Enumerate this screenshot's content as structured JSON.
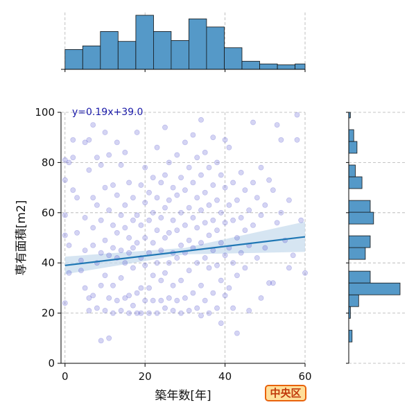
{
  "chart_data": {
    "type": "scatter",
    "title": "",
    "xlabel": "築年数[年]",
    "ylabel": "専有面積[m2]",
    "xlim": [
      -1,
      60
    ],
    "ylim": [
      0,
      100
    ],
    "xticks": [
      0,
      20,
      40,
      60
    ],
    "yticks": [
      0,
      20,
      40,
      60,
      80,
      100
    ],
    "grid": true,
    "fit_label": "y=0.19x+39.0",
    "fit": {
      "slope": 0.19,
      "intercept": 39.0
    },
    "colors": {
      "points": "#3a3ac8",
      "line": "#1f77b4",
      "hist": "#5599c8",
      "band": "#c8dcee"
    },
    "points": [
      [
        0,
        24
      ],
      [
        0,
        51
      ],
      [
        0,
        59
      ],
      [
        0,
        73
      ],
      [
        0,
        81
      ],
      [
        1,
        80
      ],
      [
        1,
        47
      ],
      [
        1,
        36
      ],
      [
        2,
        89
      ],
      [
        2,
        82
      ],
      [
        2,
        69
      ],
      [
        3,
        66
      ],
      [
        3,
        52
      ],
      [
        4,
        41
      ],
      [
        4,
        37
      ],
      [
        5,
        88
      ],
      [
        5,
        58
      ],
      [
        5,
        45
      ],
      [
        5,
        30
      ],
      [
        6,
        89
      ],
      [
        6,
        77
      ],
      [
        6,
        26
      ],
      [
        6,
        21
      ],
      [
        7,
        95
      ],
      [
        7,
        66
      ],
      [
        7,
        54
      ],
      [
        7,
        47
      ],
      [
        7,
        27
      ],
      [
        8,
        82
      ],
      [
        8,
        63
      ],
      [
        8,
        40
      ],
      [
        8,
        22
      ],
      [
        9,
        79
      ],
      [
        9,
        57
      ],
      [
        9,
        44
      ],
      [
        9,
        31
      ],
      [
        9,
        9
      ],
      [
        10,
        92
      ],
      [
        10,
        70
      ],
      [
        10,
        49
      ],
      [
        10,
        35
      ],
      [
        10,
        21
      ],
      [
        11,
        83
      ],
      [
        11,
        61
      ],
      [
        11,
        43
      ],
      [
        11,
        26
      ],
      [
        11,
        10
      ],
      [
        12,
        71
      ],
      [
        12,
        55
      ],
      [
        12,
        46
      ],
      [
        12,
        31
      ],
      [
        12,
        20
      ],
      [
        13,
        88
      ],
      [
        13,
        67
      ],
      [
        13,
        52
      ],
      [
        13,
        42
      ],
      [
        13,
        25
      ],
      [
        14,
        79
      ],
      [
        14,
        59
      ],
      [
        14,
        45
      ],
      [
        14,
        34
      ],
      [
        14,
        21
      ],
      [
        15,
        84
      ],
      [
        15,
        63
      ],
      [
        15,
        54
      ],
      [
        15,
        40
      ],
      [
        15,
        26
      ],
      [
        16,
        72
      ],
      [
        16,
        50
      ],
      [
        16,
        44
      ],
      [
        16,
        27
      ],
      [
        16,
        20
      ],
      [
        17,
        66
      ],
      [
        17,
        57
      ],
      [
        17,
        46
      ],
      [
        17,
        38
      ],
      [
        17,
        23
      ],
      [
        18,
        92
      ],
      [
        18,
        59
      ],
      [
        18,
        48
      ],
      [
        18,
        28
      ],
      [
        18,
        20
      ],
      [
        19,
        71
      ],
      [
        19,
        55
      ],
      [
        19,
        42
      ],
      [
        19,
        30
      ],
      [
        19,
        20
      ],
      [
        20,
        78
      ],
      [
        20,
        64
      ],
      [
        20,
        50
      ],
      [
        20,
        39
      ],
      [
        20,
        25
      ],
      [
        21,
        68
      ],
      [
        21,
        57
      ],
      [
        21,
        44
      ],
      [
        21,
        30
      ],
      [
        21,
        20
      ],
      [
        22,
        74
      ],
      [
        22,
        60
      ],
      [
        22,
        48
      ],
      [
        22,
        35
      ],
      [
        22,
        25
      ],
      [
        23,
        86
      ],
      [
        23,
        66
      ],
      [
        23,
        53
      ],
      [
        23,
        40
      ],
      [
        23,
        20
      ],
      [
        24,
        72
      ],
      [
        24,
        58
      ],
      [
        24,
        45
      ],
      [
        24,
        33
      ],
      [
        24,
        25
      ],
      [
        25,
        94
      ],
      [
        25,
        75
      ],
      [
        25,
        62
      ],
      [
        25,
        50
      ],
      [
        25,
        36
      ],
      [
        25,
        22
      ],
      [
        26,
        80
      ],
      [
        26,
        65
      ],
      [
        26,
        52
      ],
      [
        26,
        40
      ],
      [
        26,
        26
      ],
      [
        27,
        70
      ],
      [
        27,
        57
      ],
      [
        27,
        44
      ],
      [
        27,
        31
      ],
      [
        27,
        21
      ],
      [
        28,
        83
      ],
      [
        28,
        67
      ],
      [
        28,
        53
      ],
      [
        28,
        42
      ],
      [
        28,
        25
      ],
      [
        29,
        74
      ],
      [
        29,
        60
      ],
      [
        29,
        47
      ],
      [
        29,
        33
      ],
      [
        29,
        20
      ],
      [
        30,
        88
      ],
      [
        30,
        69
      ],
      [
        30,
        55
      ],
      [
        30,
        44
      ],
      [
        30,
        26
      ],
      [
        31,
        78
      ],
      [
        31,
        62
      ],
      [
        31,
        49
      ],
      [
        31,
        37
      ],
      [
        31,
        21
      ],
      [
        32,
        91
      ],
      [
        32,
        72
      ],
      [
        32,
        58
      ],
      [
        32,
        46
      ],
      [
        32,
        28
      ],
      [
        33,
        82
      ],
      [
        33,
        66
      ],
      [
        33,
        54
      ],
      [
        33,
        40
      ],
      [
        33,
        22
      ],
      [
        34,
        97
      ],
      [
        34,
        75
      ],
      [
        34,
        61
      ],
      [
        34,
        48
      ],
      [
        34,
        31
      ],
      [
        34,
        19
      ],
      [
        35,
        84
      ],
      [
        35,
        68
      ],
      [
        35,
        56
      ],
      [
        35,
        42
      ],
      [
        35,
        25
      ],
      [
        36,
        78
      ],
      [
        36,
        63
      ],
      [
        36,
        51
      ],
      [
        36,
        38
      ],
      [
        36,
        20
      ],
      [
        37,
        90
      ],
      [
        37,
        71
      ],
      [
        37,
        57
      ],
      [
        37,
        45
      ],
      [
        37,
        28
      ],
      [
        38,
        80
      ],
      [
        38,
        65
      ],
      [
        38,
        53
      ],
      [
        38,
        39
      ],
      [
        38,
        22
      ],
      [
        39,
        75
      ],
      [
        39,
        60
      ],
      [
        39,
        48
      ],
      [
        39,
        33
      ],
      [
        39,
        16
      ],
      [
        40,
        89
      ],
      [
        40,
        70
      ],
      [
        40,
        56
      ],
      [
        40,
        43
      ],
      [
        40,
        27
      ],
      [
        41,
        86
      ],
      [
        41,
        63
      ],
      [
        41,
        46
      ],
      [
        41,
        30
      ],
      [
        42,
        72
      ],
      [
        42,
        57
      ],
      [
        42,
        40
      ],
      [
        42,
        22
      ],
      [
        43,
        65
      ],
      [
        43,
        50
      ],
      [
        43,
        35
      ],
      [
        43,
        12
      ],
      [
        44,
        76
      ],
      [
        44,
        58
      ],
      [
        44,
        44
      ],
      [
        45,
        69
      ],
      [
        45,
        53
      ],
      [
        45,
        38
      ],
      [
        46,
        61
      ],
      [
        46,
        47
      ],
      [
        46,
        21
      ],
      [
        47,
        96
      ],
      [
        47,
        72
      ],
      [
        47,
        55
      ],
      [
        48,
        66
      ],
      [
        48,
        42
      ],
      [
        49,
        78
      ],
      [
        49,
        59
      ],
      [
        49,
        26
      ],
      [
        50,
        63
      ],
      [
        50,
        46
      ],
      [
        51,
        73
      ],
      [
        51,
        32
      ],
      [
        52,
        69
      ],
      [
        52,
        32
      ],
      [
        53,
        95
      ],
      [
        53,
        56
      ],
      [
        54,
        89
      ],
      [
        54,
        60
      ],
      [
        55,
        49
      ],
      [
        56,
        65
      ],
      [
        56,
        38
      ],
      [
        57,
        43
      ],
      [
        58,
        99
      ],
      [
        58,
        89
      ],
      [
        59,
        57
      ],
      [
        60,
        36
      ]
    ],
    "x_hist": {
      "bin_edges": [
        0,
        4.42,
        8.85,
        13.27,
        17.69,
        22.12,
        26.54,
        30.96,
        35.38,
        39.81,
        44.23,
        48.65,
        53.08,
        57.5,
        60
      ],
      "counts": [
        22,
        26,
        42,
        31,
        60,
        42,
        32,
        56,
        47,
        24,
        9,
        6,
        5,
        6
      ]
    },
    "y_hist": {
      "bin_edges": [
        8.5,
        13.2,
        17.9,
        22.6,
        27.3,
        32.0,
        36.7,
        41.4,
        46.1,
        50.8,
        55.5,
        60.2,
        64.9,
        69.6,
        74.3,
        79.0,
        83.7,
        88.4,
        93.1,
        97.8,
        100
      ],
      "counts": [
        2,
        0,
        1,
        6,
        31,
        13,
        0,
        10,
        13,
        0,
        15,
        13,
        0,
        8,
        4,
        0,
        5,
        3,
        0,
        1
      ]
    }
  },
  "badge": {
    "label": "中央区"
  }
}
